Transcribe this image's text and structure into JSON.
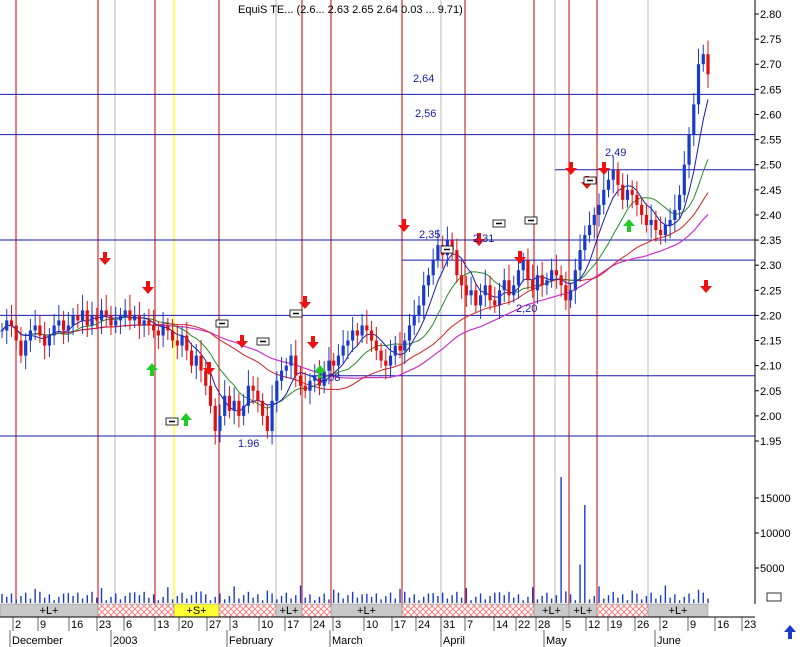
{
  "header_text": "EquiS TE... (2.6... 2.63 2.65 2.64 0.03 ... 9.71)",
  "colors": {
    "vline": "#cc0000",
    "hline": "#1a1aaa",
    "ma_blue": "#1a1aaa",
    "ma_green": "#2a8a2a",
    "ma_red": "#d42020",
    "ma_magenta": "#cc33cc",
    "candle_up": "#1a3acc",
    "candle_down": "#dd1111",
    "arrow_up": "#22cc22",
    "arrow_down": "#ee1111",
    "band_gray": "#c8c8c8",
    "band_hatch": "#ff8080",
    "band_yellow": "#ffff33",
    "highlight_yellow": "#ffff33"
  },
  "chart_data": {
    "type": "candlestick",
    "ylim": [
      1.93,
      2.83
    ],
    "y_ticks": [
      "2.80",
      "2.75",
      "2.70",
      "2.65",
      "2.60",
      "2.55",
      "2.50",
      "2.45",
      "2.40",
      "2.35",
      "2.30",
      "2.25",
      "2.20",
      "2.15",
      "2.10",
      "2.05",
      "2.00",
      "1.95"
    ],
    "volume_ticks": [
      "15000",
      "10000",
      "5000"
    ],
    "volume_ylim": [
      0,
      19000
    ],
    "levels": [
      {
        "value": 2.64,
        "label": "2,64"
      },
      {
        "value": 2.56,
        "label": "2,56"
      },
      {
        "value": 2.49,
        "label": "2,49"
      },
      {
        "value": 2.35,
        "label": "2,35"
      },
      {
        "value": 2.31,
        "label": "2,31"
      },
      {
        "value": 2.2,
        "label": "2,20"
      },
      {
        "value": 2.08,
        "label": "2,08"
      },
      {
        "value": 1.96,
        "label": "1.96"
      }
    ],
    "x_ticks": [
      "2",
      "9",
      "16",
      "23",
      "6",
      "13",
      "20",
      "27",
      "3",
      "10",
      "17",
      "24",
      "3",
      "10",
      "17",
      "24",
      "31",
      "7",
      "14",
      "22",
      "28",
      "5",
      "12",
      "19",
      "26",
      "2",
      "9",
      "16",
      "23"
    ],
    "months": [
      "December",
      "2003",
      "February",
      "March",
      "April",
      "May",
      "June"
    ],
    "band_labels": [
      "+L+",
      "+S+",
      "+L+",
      "+L+",
      "+L+",
      "+L+",
      "+L+"
    ],
    "num_bars": 150,
    "closes": [
      2.17,
      2.19,
      2.18,
      2.15,
      2.12,
      2.15,
      2.17,
      2.18,
      2.16,
      2.14,
      2.16,
      2.18,
      2.19,
      2.17,
      2.18,
      2.2,
      2.19,
      2.21,
      2.18,
      2.2,
      2.19,
      2.21,
      2.2,
      2.18,
      2.19,
      2.2,
      2.21,
      2.19,
      2.2,
      2.18,
      2.19,
      2.18,
      2.17,
      2.16,
      2.18,
      2.17,
      2.15,
      2.14,
      2.16,
      2.13,
      2.1,
      2.12,
      2.09,
      2.06,
      2.02,
      1.97,
      2.0,
      2.04,
      2.01,
      2.03,
      2.0,
      2.02,
      2.06,
      2.05,
      2.03,
      2.0,
      1.97,
      2.03,
      2.07,
      2.09,
      2.1,
      2.12,
      2.08,
      2.06,
      2.05,
      2.07,
      2.08,
      2.06,
      2.09,
      2.11,
      2.1,
      2.12,
      2.14,
      2.15,
      2.17,
      2.16,
      2.18,
      2.17,
      2.15,
      2.13,
      2.11,
      2.1,
      2.12,
      2.14,
      2.13,
      2.15,
      2.18,
      2.2,
      2.22,
      2.26,
      2.28,
      2.31,
      2.34,
      2.32,
      2.35,
      2.33,
      2.28,
      2.26,
      2.24,
      2.25,
      2.22,
      2.24,
      2.26,
      2.23,
      2.22,
      2.25,
      2.27,
      2.24,
      2.26,
      2.29,
      2.31,
      2.27,
      2.25,
      2.28,
      2.26,
      2.27,
      2.29,
      2.28,
      2.26,
      2.23,
      2.25,
      2.29,
      2.33,
      2.36,
      2.38,
      2.4,
      2.42,
      2.45,
      2.47,
      2.49,
      2.46,
      2.43,
      2.45,
      2.44,
      2.42,
      2.4,
      2.38,
      2.39,
      2.37,
      2.36,
      2.38,
      2.39,
      2.41,
      2.44,
      2.5,
      2.56,
      2.62,
      2.7,
      2.72,
      2.68
    ],
    "vol_spikes": [
      {
        "bar": 118,
        "value": 18000
      },
      {
        "bar": 123,
        "value": 14000
      },
      {
        "bar": 122,
        "value": 5500
      }
    ]
  }
}
